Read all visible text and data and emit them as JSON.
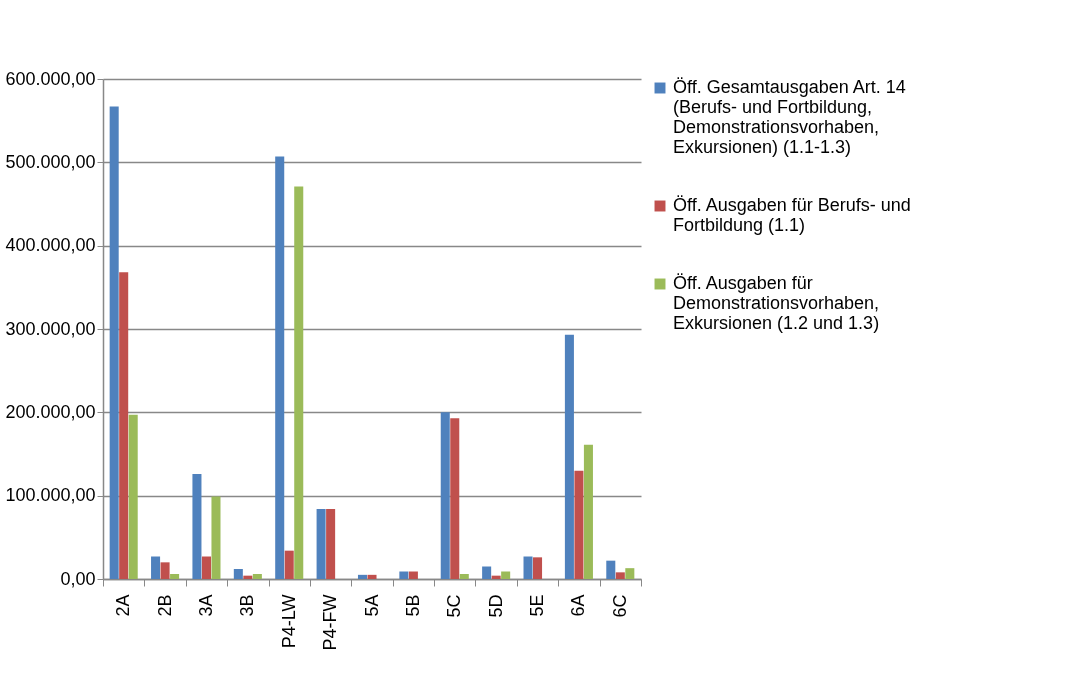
{
  "chart_data": {
    "type": "bar",
    "categories": [
      "2A",
      "2B",
      "3A",
      "3B",
      "P4-LW",
      "P4-FW",
      "5A",
      "5B",
      "5C",
      "5D",
      "5E",
      "6A",
      "6C"
    ],
    "series": [
      {
        "name": "Öff. Gesamtausgaben Art. 14 (Berufs- und Fortbildung, Demonstrationsvorhaben, Exkursionen) (1.1-1.3)",
        "color": "#4f81bd",
        "values": [
          567000,
          27000,
          126000,
          12000,
          507000,
          84000,
          5000,
          9000,
          200000,
          15000,
          27000,
          293000,
          22000
        ]
      },
      {
        "name": "Öff. Ausgaben für Berufs- und Fortbildung (1.1)",
        "color": "#c0504d",
        "values": [
          368000,
          20000,
          27000,
          4000,
          34000,
          84000,
          5000,
          9000,
          193000,
          4000,
          26000,
          130000,
          8000
        ]
      },
      {
        "name": "Öff. Ausgaben für Demonstrationsvorhaben, Exkursionen (1.2 und 1.3)",
        "color": "#9bbb59",
        "values": [
          197000,
          6000,
          99000,
          6000,
          471000,
          null,
          null,
          null,
          6000,
          9000,
          null,
          161000,
          13000
        ]
      }
    ],
    "ylim": [
      0,
      600000
    ],
    "yticks": [
      {
        "value": 0,
        "label": "0,00"
      },
      {
        "value": 100000,
        "label": "100.000,00"
      },
      {
        "value": 200000,
        "label": "200.000,00"
      },
      {
        "value": 300000,
        "label": "300.000,00"
      },
      {
        "value": 400000,
        "label": "400.000,00"
      },
      {
        "value": 500000,
        "label": "500.000,00"
      },
      {
        "value": 600000,
        "label": "600.000,00"
      }
    ],
    "grid": "y",
    "legend": "right"
  }
}
